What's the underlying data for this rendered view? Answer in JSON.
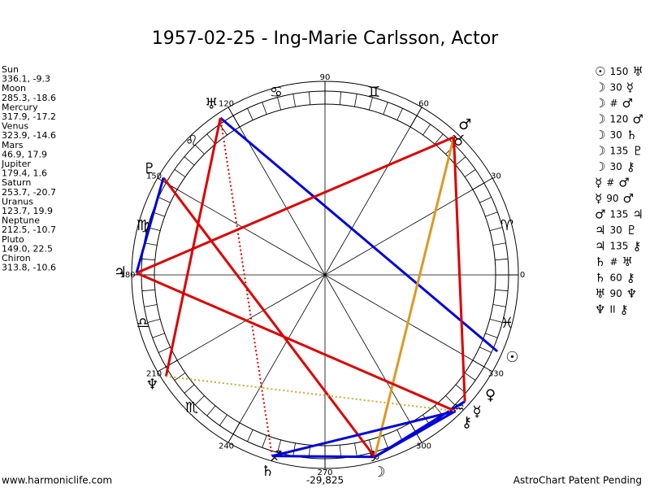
{
  "title": "1957-02-25 - Ing-Marie Carlsson, Actor",
  "planets": [
    {
      "name": "Sun",
      "glyph": "☉",
      "position": "336.1, -9.3"
    },
    {
      "name": "Moon",
      "glyph": "☽",
      "position": "285.3, -18.6"
    },
    {
      "name": "Mercury",
      "glyph": "☿",
      "position": "317.9, -17.2"
    },
    {
      "name": "Venus",
      "glyph": "♀",
      "position": "323.9, -14.6"
    },
    {
      "name": "Mars",
      "glyph": "♂",
      "position": "46.9, 17.9"
    },
    {
      "name": "Jupiter",
      "glyph": "♃",
      "position": "179.4, 1.6"
    },
    {
      "name": "Saturn",
      "glyph": "♄",
      "position": "253.7, -20.7"
    },
    {
      "name": "Uranus",
      "glyph": "♅",
      "position": "123.7, 19.9"
    },
    {
      "name": "Neptune",
      "glyph": "♆",
      "position": "212.5, -10.7"
    },
    {
      "name": "Pluto",
      "glyph": "♇",
      "position": "149.0, 22.5"
    },
    {
      "name": "Chiron",
      "glyph": "⚷",
      "position": "313.8, -10.6"
    }
  ],
  "signs": [
    "♈",
    "♉",
    "♊",
    "♋",
    "♌",
    "♍",
    "♎",
    "♏",
    "♐",
    "♑",
    "♒",
    "♓"
  ],
  "degree_labels": [
    0,
    30,
    60,
    90,
    120,
    150,
    180,
    210,
    240,
    270,
    300,
    330
  ],
  "aspects": [
    {
      "p1": "☉",
      "aspect": "150",
      "p2": "♅",
      "color": "#0000dd",
      "dotted": false
    },
    {
      "p1": "☽",
      "aspect": "30",
      "p2": "☿",
      "color": "#0000dd",
      "dotted": false
    },
    {
      "p1": "☽",
      "aspect": "#",
      "p2": "♂",
      "color": "#dd0000",
      "dotted": true
    },
    {
      "p1": "☽",
      "aspect": "120",
      "p2": "♂",
      "color": "#dd9922",
      "dotted": false
    },
    {
      "p1": "☽",
      "aspect": "30",
      "p2": "♄",
      "color": "#0000dd",
      "dotted": false
    },
    {
      "p1": "☽",
      "aspect": "135",
      "p2": "♇",
      "color": "#dd0000",
      "dotted": false
    },
    {
      "p1": "☽",
      "aspect": "30",
      "p2": "⚷",
      "color": "#0000dd",
      "dotted": false
    },
    {
      "p1": "☿",
      "aspect": "#",
      "p2": "♂",
      "color": "#dd0000",
      "dotted": true
    },
    {
      "p1": "☿",
      "aspect": "90",
      "p2": "♂",
      "color": "#dd0000",
      "dotted": false
    },
    {
      "p1": "♂",
      "aspect": "135",
      "p2": "♃",
      "color": "#dd0000",
      "dotted": false
    },
    {
      "p1": "♃",
      "aspect": "30",
      "p2": "♇",
      "color": "#0000dd",
      "dotted": false
    },
    {
      "p1": "♃",
      "aspect": "135",
      "p2": "⚷",
      "color": "#dd0000",
      "dotted": false
    },
    {
      "p1": "♄",
      "aspect": "#",
      "p2": "♅",
      "color": "#dd0000",
      "dotted": true
    },
    {
      "p1": "♄",
      "aspect": "60",
      "p2": "⚷",
      "color": "#0000dd",
      "dotted": false
    },
    {
      "p1": "♅",
      "aspect": "90",
      "p2": "♆",
      "color": "#dd0000",
      "dotted": false
    },
    {
      "p1": "♆",
      "aspect": "II",
      "p2": "⚷",
      "color": "#ccaa33",
      "dotted": true
    }
  ],
  "footer": {
    "left": "www.harmoniclife.com",
    "center": "-29,825",
    "right": "AstroChart Patent Pending"
  }
}
